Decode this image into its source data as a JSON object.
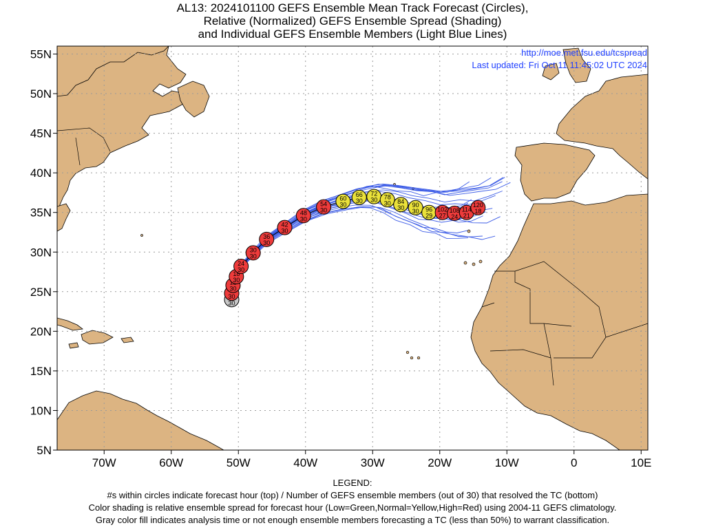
{
  "title": {
    "line1": "AL13: 2024101100 GEFS Ensemble Mean Track Forecast (Circles),",
    "line2": "Relative (Normalized) GEFS Ensemble Spread (Shading)",
    "line3": "and Individual GEFS Ensemble Members (Light Blue Lines)"
  },
  "credit": {
    "url": "http://moe.met.fsu.edu/tcspread",
    "updated": "Last updated: Fri Oct 11 11:45:02 UTC 2024"
  },
  "axes": {
    "lat_labels": [
      "55N",
      "50N",
      "45N",
      "40N",
      "35N",
      "30N",
      "25N",
      "20N",
      "15N",
      "10N",
      "5N"
    ],
    "lon_labels": [
      "70W",
      "60W",
      "50W",
      "40W",
      "30W",
      "20W",
      "10W",
      "0",
      "10E"
    ],
    "lat_range": [
      5,
      56
    ],
    "lon_range": [
      -77,
      11
    ],
    "grid": true
  },
  "colors": {
    "land": "#dcb482",
    "ocean": "#ffffff",
    "member_line": "#3a5ae6",
    "high_spread": "#ee3b3b",
    "normal_spread": "#eae13a",
    "analysis": "#c8c8c8"
  },
  "track": [
    {
      "hour": "0",
      "members": "30",
      "lat": 24.0,
      "lon": -51.0,
      "level": "analysis"
    },
    {
      "hour": "6",
      "members": "30",
      "lat": 24.8,
      "lon": -51.0,
      "level": "high"
    },
    {
      "hour": "12",
      "members": "30",
      "lat": 25.8,
      "lon": -50.8,
      "level": "high"
    },
    {
      "hour": "18",
      "members": "30",
      "lat": 26.9,
      "lon": -50.3,
      "level": "high"
    },
    {
      "hour": "24",
      "members": "30",
      "lat": 28.2,
      "lon": -49.6,
      "level": "high"
    },
    {
      "hour": "30",
      "members": "30",
      "lat": 29.9,
      "lon": -47.8,
      "level": "high"
    },
    {
      "hour": "36",
      "members": "30",
      "lat": 31.6,
      "lon": -45.8,
      "level": "high"
    },
    {
      "hour": "42",
      "members": "30",
      "lat": 33.1,
      "lon": -43.1,
      "level": "high"
    },
    {
      "hour": "48",
      "members": "30",
      "lat": 34.6,
      "lon": -40.3,
      "level": "high"
    },
    {
      "hour": "54",
      "members": "30",
      "lat": 35.7,
      "lon": -37.3,
      "level": "high"
    },
    {
      "hour": "60",
      "members": "30",
      "lat": 36.4,
      "lon": -34.4,
      "level": "normal"
    },
    {
      "hour": "66",
      "members": "30",
      "lat": 36.9,
      "lon": -32.0,
      "level": "normal"
    },
    {
      "hour": "72",
      "members": "30",
      "lat": 37.0,
      "lon": -29.8,
      "level": "normal"
    },
    {
      "hour": "78",
      "members": "30",
      "lat": 36.6,
      "lon": -27.8,
      "level": "normal"
    },
    {
      "hour": "84",
      "members": "30",
      "lat": 36.0,
      "lon": -25.8,
      "level": "normal"
    },
    {
      "hour": "90",
      "members": "30",
      "lat": 35.6,
      "lon": -23.6,
      "level": "normal"
    },
    {
      "hour": "96",
      "members": "29",
      "lat": 35.0,
      "lon": -21.6,
      "level": "normal"
    },
    {
      "hour": "102",
      "members": "27",
      "lat": 35.0,
      "lon": -19.6,
      "level": "high"
    },
    {
      "hour": "108",
      "members": "24",
      "lat": 34.9,
      "lon": -17.8,
      "level": "high"
    },
    {
      "hour": "114",
      "members": "21",
      "lat": 35.0,
      "lon": -16.0,
      "level": "high"
    },
    {
      "hour": "120",
      "members": "18",
      "lat": 35.6,
      "lon": -14.3,
      "level": "high"
    }
  ],
  "legend": {
    "heading": "LEGEND:",
    "line1": "#s within circles indicate forecast hour (top) / Number of GEFS ensemble members (out of 30) that resolved the TC (bottom)",
    "line2": "Color shading is relative ensemble spread for forecast hour (Low=Green,Normal=Yellow,High=Red) using 2004-11 GEFS climatology.",
    "line3": "Gray color fill indicates analysis time or not enough ensemble members forecasting a TC (less than 50%) to warrant classification."
  }
}
